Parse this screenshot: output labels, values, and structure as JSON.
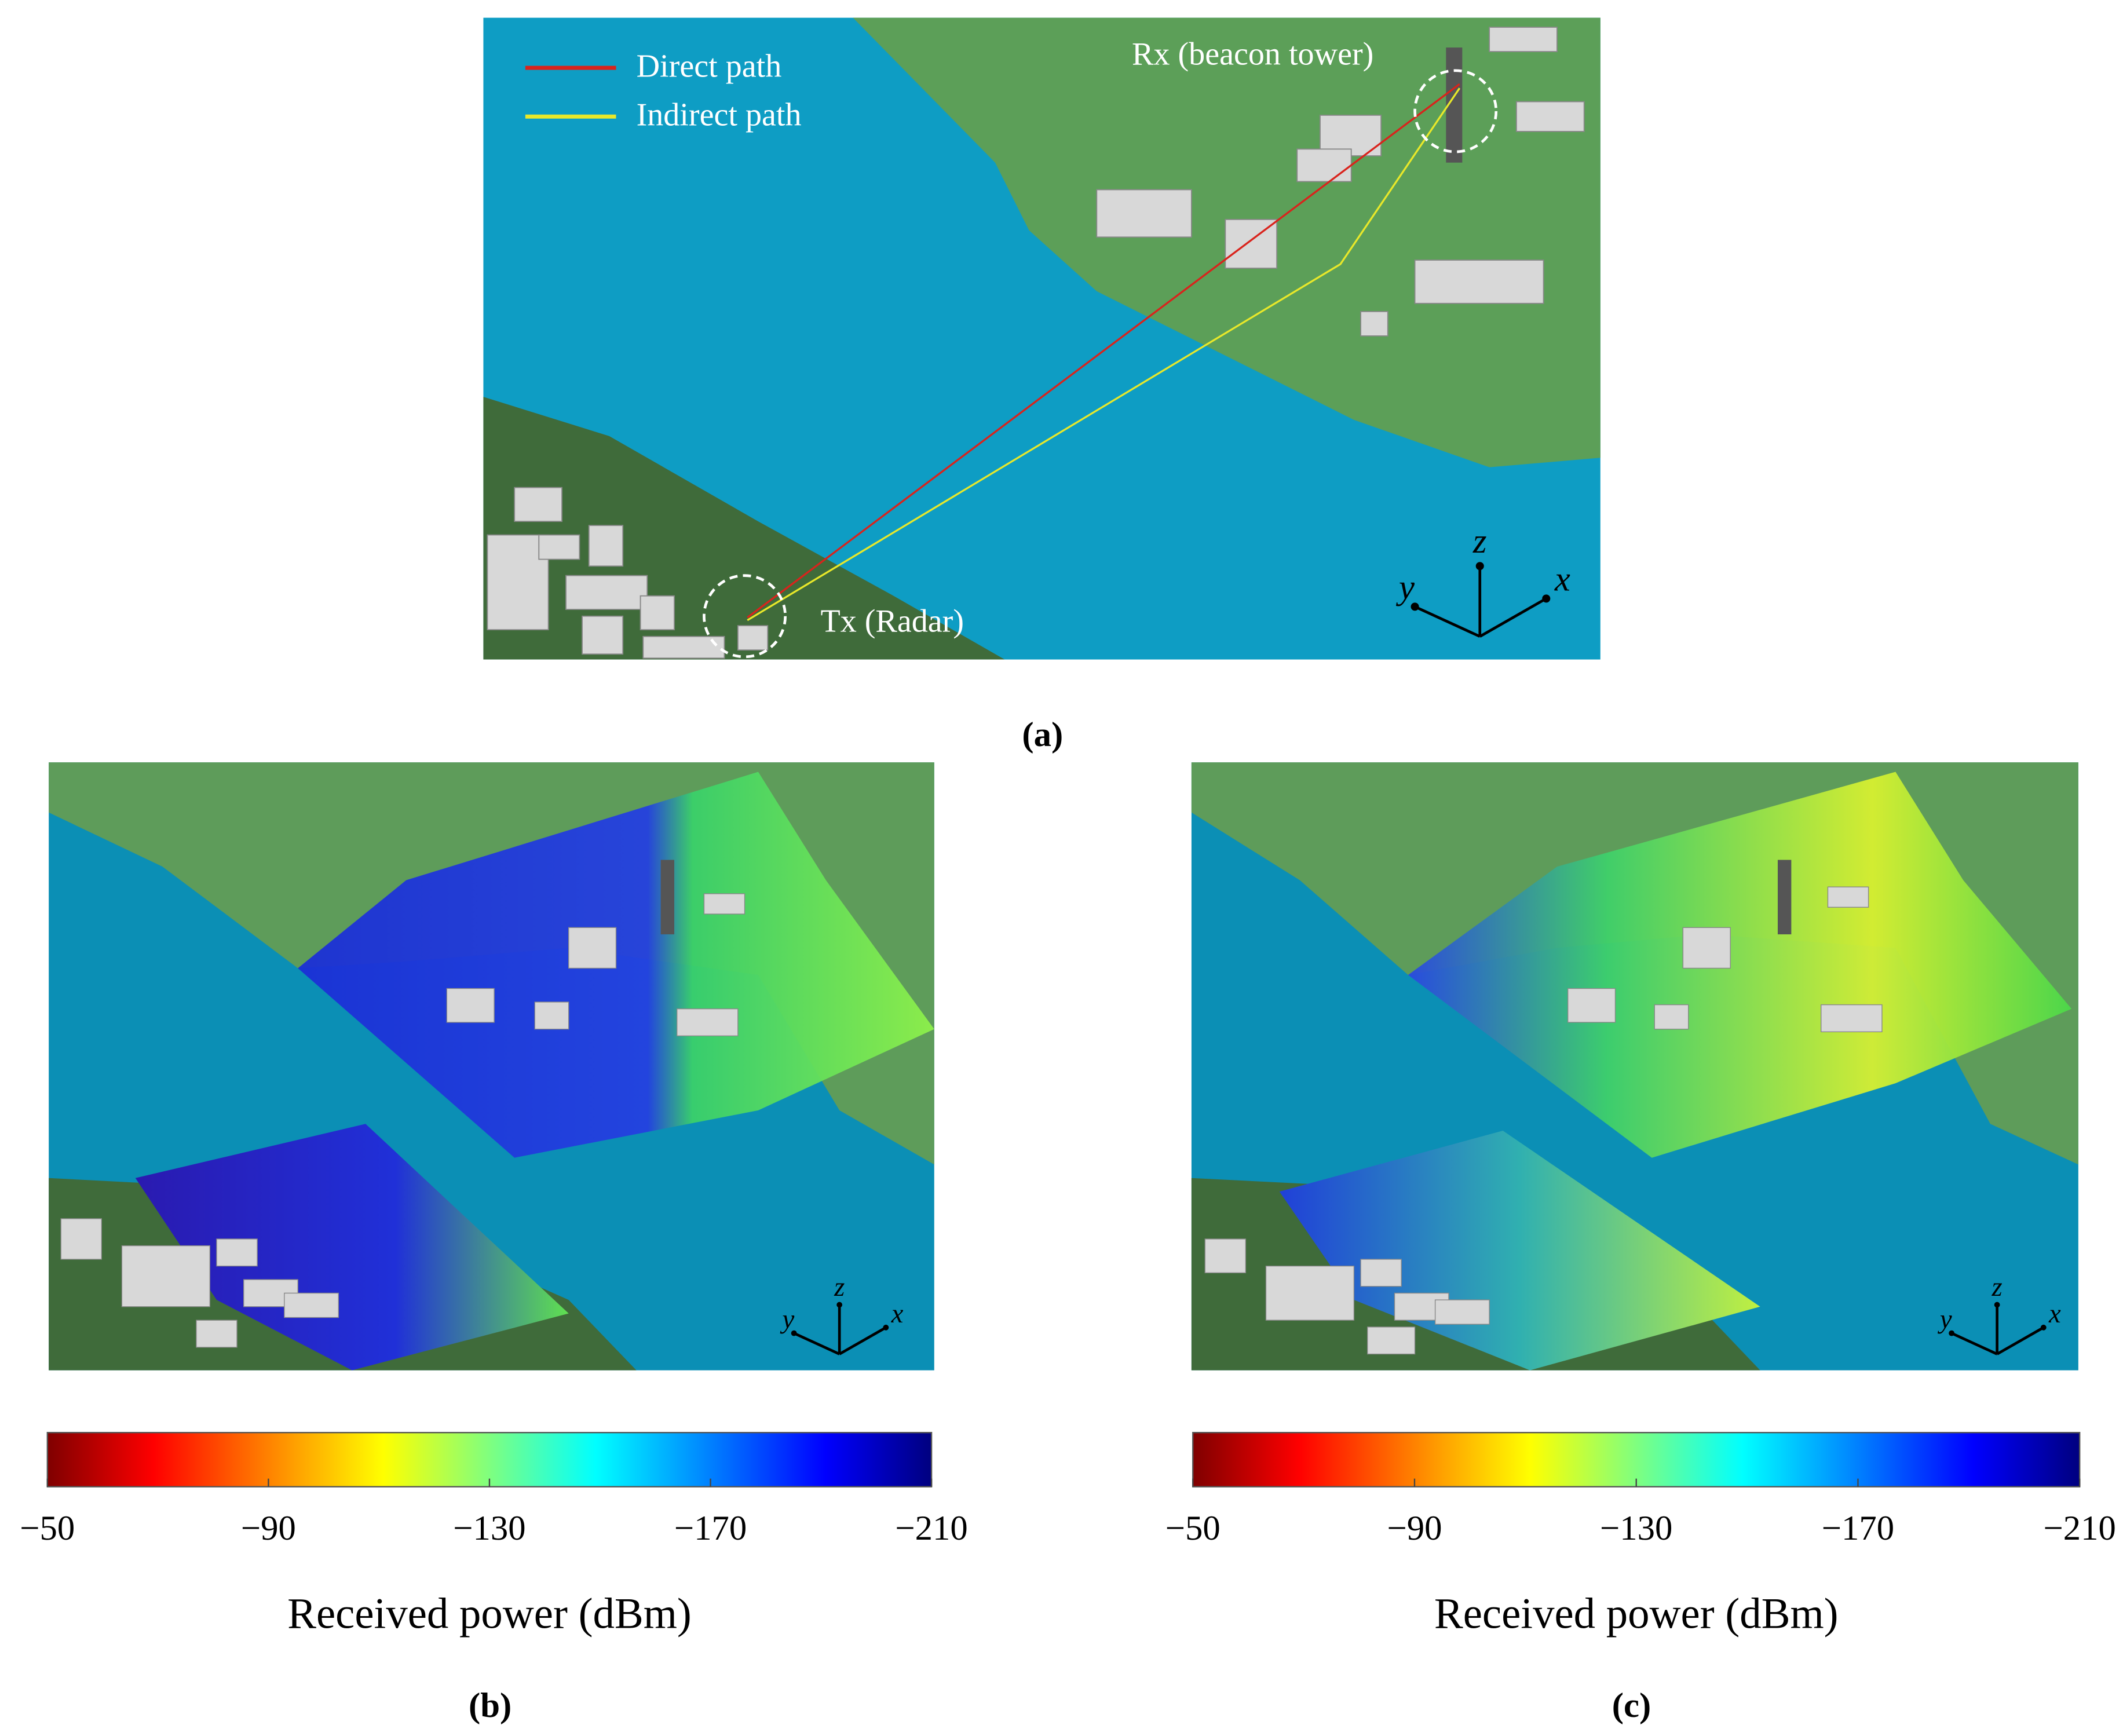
{
  "panel_a": {
    "legend": [
      "Direct path",
      "Indirect path"
    ],
    "rx_label": "Rx (beacon tower)",
    "tx_label": "Tx (Radar)",
    "axes": [
      "y",
      "z",
      "x"
    ],
    "caption": "(a)"
  },
  "panel_b": {
    "axes": [
      "y",
      "z",
      "x"
    ],
    "colorbar": {
      "ticks": [
        "−50",
        "−90",
        "−130",
        "−170",
        "−210"
      ],
      "label": "Received power (dBm)"
    },
    "caption": "(b)"
  },
  "panel_c": {
    "axes": [
      "y",
      "z",
      "x"
    ],
    "colorbar": {
      "ticks": [
        "−50",
        "−90",
        "−130",
        "−170",
        "−210"
      ],
      "label": "Received power (dBm)"
    },
    "caption": "(c)"
  }
}
